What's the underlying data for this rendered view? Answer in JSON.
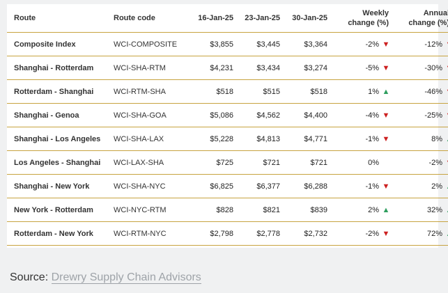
{
  "table": {
    "headers": {
      "route": "Route",
      "code": "Route code",
      "d1": "16-Jan-25",
      "d2": "23-Jan-25",
      "d3": "30-Jan-25",
      "weekly_1": "Weekly",
      "weekly_2": "change (%)",
      "annual_1": "Annual",
      "annual_2": "change (%)"
    },
    "rows": [
      {
        "route": "Composite Index",
        "code": "WCI-COMPOSITE",
        "d1": "$3,855",
        "d2": "$3,445",
        "d3": "$3,364",
        "weekly": "-2%",
        "weekly_dir": "down",
        "annual": "-12%",
        "annual_dir": "down"
      },
      {
        "route": "Shanghai - Rotterdam",
        "code": "WCI-SHA-RTM",
        "d1": "$4,231",
        "d2": "$3,434",
        "d3": "$3,274",
        "weekly": "-5%",
        "weekly_dir": "down",
        "annual": "-30%",
        "annual_dir": "down"
      },
      {
        "route": "Rotterdam - Shanghai",
        "code": "WCI-RTM-SHA",
        "d1": "$518",
        "d2": "$515",
        "d3": "$518",
        "weekly": "1%",
        "weekly_dir": "up",
        "annual": "-46%",
        "annual_dir": "down"
      },
      {
        "route": "Shanghai - Genoa",
        "code": "WCI-SHA-GOA",
        "d1": "$5,086",
        "d2": "$4,562",
        "d3": "$4,400",
        "weekly": "-4%",
        "weekly_dir": "down",
        "annual": "-25%",
        "annual_dir": "down"
      },
      {
        "route": "Shanghai - Los Angeles",
        "code": "WCI-SHA-LAX",
        "d1": "$5,228",
        "d2": "$4,813",
        "d3": "$4,771",
        "weekly": "-1%",
        "weekly_dir": "down",
        "annual": "8%",
        "annual_dir": "up"
      },
      {
        "route": "Los Angeles - Shanghai",
        "code": "WCI-LAX-SHA",
        "d1": "$725",
        "d2": "$721",
        "d3": "$721",
        "weekly": "0%",
        "weekly_dir": "none",
        "annual": "-2%",
        "annual_dir": "down"
      },
      {
        "route": "Shanghai - New York",
        "code": "WCI-SHA-NYC",
        "d1": "$6,825",
        "d2": "$6,377",
        "d3": "$6,288",
        "weekly": "-1%",
        "weekly_dir": "down",
        "annual": "2%",
        "annual_dir": "up"
      },
      {
        "route": "New York - Rotterdam",
        "code": "WCI-NYC-RTM",
        "d1": "$828",
        "d2": "$821",
        "d3": "$839",
        "weekly": "2%",
        "weekly_dir": "up",
        "annual": "32%",
        "annual_dir": "up"
      },
      {
        "route": "Rotterdam - New York",
        "code": "WCI-RTM-NYC",
        "d1": "$2,798",
        "d2": "$2,778",
        "d3": "$2,732",
        "weekly": "-2%",
        "weekly_dir": "down",
        "annual": "72%",
        "annual_dir": "up"
      }
    ]
  },
  "source": {
    "label": "Source:",
    "link_text": "Drewry Supply Chain Advisors"
  },
  "colors": {
    "down": "#cc1f1f",
    "up": "#2e9e5e",
    "rule": "#c7a33f",
    "link": "#9ea3a8"
  },
  "icons": {
    "down": "down-triangle-icon",
    "up": "up-triangle-icon"
  }
}
